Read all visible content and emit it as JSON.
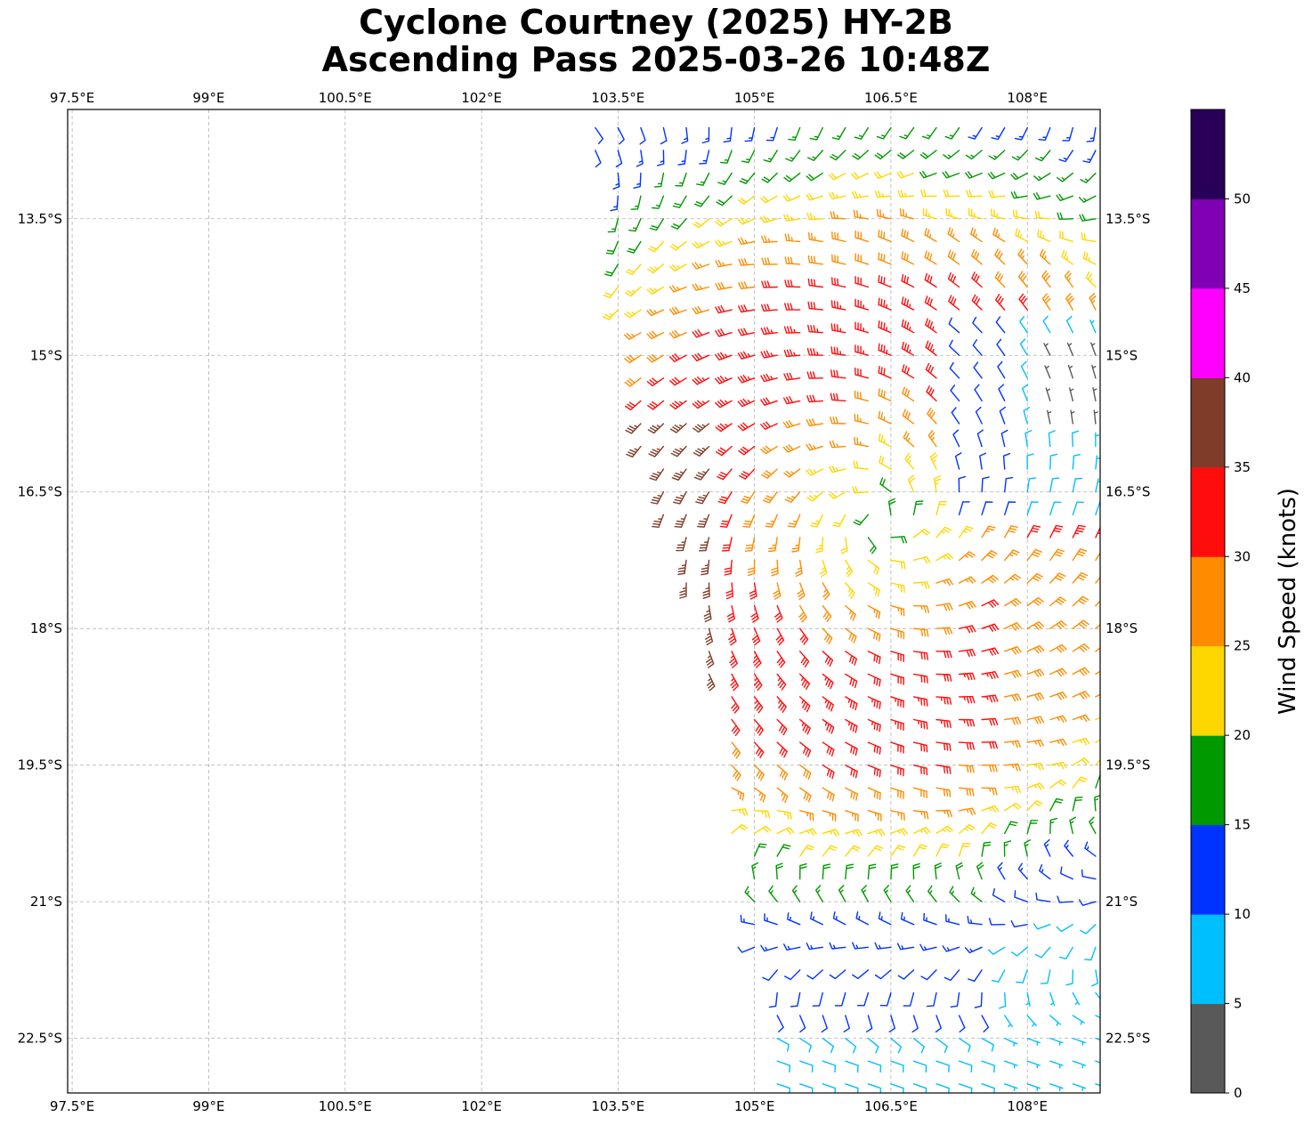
{
  "title": {
    "line1": "Cyclone Courtney (2025) HY-2B",
    "line2": "Ascending Pass 2025-03-26 10:48Z"
  },
  "chart_data": {
    "type": "wind-barb-map",
    "lon_range": [
      97.45,
      108.8
    ],
    "lat_range": [
      -23.1,
      -12.3
    ],
    "lon_ticks": [
      97.5,
      99,
      100.5,
      102,
      103.5,
      105,
      106.5,
      108
    ],
    "lon_tick_labels": [
      "97.5°E",
      "99°E",
      "100.5°E",
      "102°E",
      "103.5°E",
      "105°E",
      "106.5°E",
      "108°E"
    ],
    "lat_ticks": [
      -13.5,
      -15,
      -16.5,
      -18,
      -19.5,
      -21,
      -22.5
    ],
    "lat_tick_labels": [
      "13.5°S",
      "15°S",
      "16.5°S",
      "18°S",
      "19.5°S",
      "21°S",
      "22.5°S"
    ],
    "grid": true,
    "grid_style": "dashed",
    "vortex_center": {
      "lon": 106.4,
      "lat": -16.8
    },
    "swath_west_edge": [
      {
        "lat": -12.5,
        "lon": 103.2
      },
      {
        "lat": -14.5,
        "lon": 103.5
      },
      {
        "lat": -16.0,
        "lon": 103.7
      },
      {
        "lat": -17.3,
        "lon": 104.2
      },
      {
        "lat": -18.5,
        "lon": 104.5
      },
      {
        "lat": -20.0,
        "lon": 104.7
      },
      {
        "lat": -21.5,
        "lon": 105.0
      },
      {
        "lat": -23.1,
        "lon": 105.2
      }
    ],
    "colorbar": {
      "label": "Wind Speed (knots)",
      "bounds": [
        0,
        5,
        10,
        15,
        20,
        25,
        30,
        35,
        40,
        45,
        50,
        55
      ],
      "tick_values": [
        0,
        5,
        10,
        15,
        20,
        25,
        30,
        35,
        40,
        45,
        50
      ],
      "tick_labels": [
        "0",
        "5",
        "10",
        "15",
        "20",
        "25",
        "30",
        "35",
        "40",
        "45",
        "50"
      ],
      "colors": [
        "#595959",
        "#00bfff",
        "#0033ff",
        "#009900",
        "#ffd700",
        "#ff8c00",
        "#ff0d0d",
        "#7f3c28",
        "#ff00ff",
        "#8000b3",
        "#290057"
      ]
    }
  }
}
